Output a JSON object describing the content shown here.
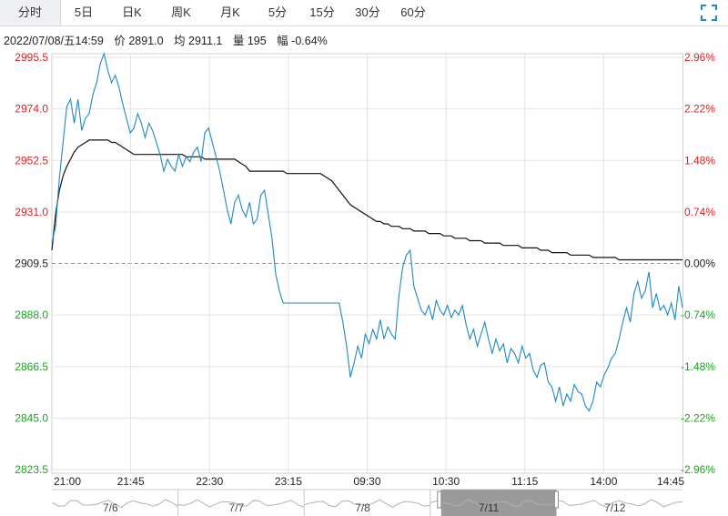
{
  "tabs": [
    "分时",
    "5日",
    "日K",
    "周K",
    "月K",
    "5分",
    "15分",
    "30分",
    "60分"
  ],
  "active_tab": 0,
  "info_bar": {
    "datetime": "2022/07/08/五14:59",
    "price_label": "价",
    "price": "2891.0",
    "avg_label": "均",
    "avg": "2911.1",
    "volume_label": "量",
    "volume": "195",
    "change_label": "幅",
    "change": "-0.64%"
  },
  "colors": {
    "up": "#e02020",
    "down": "#1aa51a",
    "price_line": "#1e88c8",
    "avg_line": "#111111",
    "grid": "#e3e3e3"
  },
  "chart_data": {
    "type": "line",
    "y_ticks": [
      "2995.5",
      "2974.0",
      "2952.5",
      "2931.0",
      "2909.5",
      "2888.0",
      "2866.5",
      "2845.0",
      "2823.5"
    ],
    "pct_ticks": [
      "2.96%",
      "2.22%",
      "1.48%",
      "0.74%",
      "0.00%",
      "-0.74%",
      "-1.48%",
      "-2.22%",
      "-2.96%"
    ],
    "x_ticks": [
      "21:00",
      "21:45",
      "22:30",
      "23:15",
      "09:30",
      "10:30",
      "11:15",
      "14:00",
      "14:45"
    ],
    "ylim": [
      2823.5,
      2995.5
    ],
    "reference_price": 2909.5,
    "series": [
      {
        "values": [
          2918,
          2925,
          2945,
          2960,
          2975,
          2978,
          2968,
          2978,
          2965,
          2970,
          2972,
          2980,
          2985,
          2993,
          2997,
          2990,
          2985,
          2988,
          2983,
          2976,
          2970,
          2964,
          2966,
          2972,
          2968,
          2962,
          2968,
          2965,
          2960,
          2955,
          2948,
          2953,
          2950,
          2948,
          2955,
          2950,
          2954,
          2952,
          2956,
          2958,
          2952,
          2964,
          2966,
          2960,
          2954,
          2948,
          2940,
          2932,
          2926,
          2935,
          2938,
          2932,
          2929,
          2935,
          2926,
          2928,
          2938,
          2940,
          2930,
          2920,
          2905,
          2898,
          2893,
          2893,
          2893,
          2893,
          2893,
          2893,
          2893,
          2893,
          2893,
          2893,
          2893,
          2893,
          2893,
          2893,
          2893,
          2893,
          2885,
          2875,
          2862,
          2868,
          2875,
          2870,
          2880,
          2876,
          2882,
          2878,
          2886,
          2878,
          2883,
          2880,
          2878,
          2896,
          2908,
          2913,
          2915,
          2900,
          2895,
          2890,
          2888,
          2892,
          2886,
          2894,
          2890,
          2888,
          2892,
          2887,
          2890,
          2888,
          2892,
          2884,
          2878,
          2882,
          2875,
          2880,
          2885,
          2878,
          2872,
          2878,
          2873,
          2876,
          2868,
          2874,
          2872,
          2868,
          2875,
          2870,
          2872,
          2865,
          2862,
          2867,
          2868,
          2860,
          2858,
          2852,
          2858,
          2850,
          2855,
          2852,
          2859,
          2856,
          2855,
          2850,
          2848,
          2852,
          2860,
          2858,
          2863,
          2866,
          2870,
          2872,
          2878,
          2885,
          2891,
          2885,
          2897,
          2902,
          2895,
          2898,
          2906,
          2891,
          2897,
          2890,
          2892,
          2888,
          2893,
          2886,
          2900,
          2891
        ],
        "avg_values": [
          2915,
          2930,
          2940,
          2946,
          2950,
          2953,
          2956,
          2958,
          2959,
          2960,
          2961,
          2961,
          2961,
          2961,
          2961,
          2961,
          2960,
          2960,
          2959,
          2958,
          2957,
          2956,
          2955,
          2955,
          2955,
          2955,
          2955,
          2955,
          2955,
          2955,
          2955,
          2955,
          2955,
          2955,
          2955,
          2955,
          2954,
          2954,
          2954,
          2954,
          2954,
          2953,
          2953,
          2953,
          2953,
          2953,
          2953,
          2953,
          2953,
          2953,
          2952,
          2951,
          2950,
          2948,
          2948,
          2948,
          2948,
          2948,
          2948,
          2948,
          2948,
          2948,
          2948,
          2947,
          2947,
          2947,
          2947,
          2947,
          2947,
          2947,
          2947,
          2947,
          2947,
          2946,
          2945,
          2944,
          2942,
          2940,
          2938,
          2936,
          2934,
          2933,
          2932,
          2931,
          2930,
          2929,
          2928,
          2927,
          2927,
          2926,
          2926,
          2925,
          2925,
          2925,
          2924,
          2924,
          2924,
          2923,
          2923,
          2923,
          2923,
          2922,
          2922,
          2922,
          2922,
          2921,
          2921,
          2921,
          2920,
          2920,
          2920,
          2920,
          2919,
          2919,
          2919,
          2919,
          2918,
          2918,
          2918,
          2918,
          2918,
          2917,
          2917,
          2917,
          2917,
          2917,
          2916,
          2916,
          2916,
          2916,
          2916,
          2915,
          2915,
          2915,
          2914,
          2914,
          2914,
          2914,
          2914,
          2913,
          2913,
          2913,
          2913,
          2913,
          2913,
          2912,
          2912,
          2912,
          2912,
          2912,
          2912,
          2912,
          2911,
          2911,
          2911,
          2911,
          2911,
          2911,
          2911,
          2911,
          2911,
          2911,
          2911,
          2911,
          2911,
          2911,
          2911,
          2911,
          2911,
          2911
        ]
      }
    ]
  },
  "navigator": {
    "labels": [
      "7/6",
      "7/7",
      "7/8",
      "7/11",
      "7/12"
    ],
    "selected_index": 3
  }
}
